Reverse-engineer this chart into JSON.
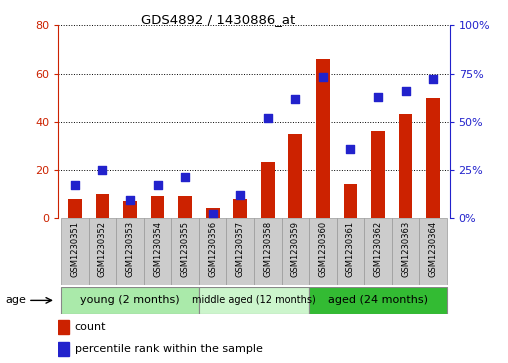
{
  "title": "GDS4892 / 1430886_at",
  "samples": [
    "GSM1230351",
    "GSM1230352",
    "GSM1230353",
    "GSM1230354",
    "GSM1230355",
    "GSM1230356",
    "GSM1230357",
    "GSM1230358",
    "GSM1230359",
    "GSM1230360",
    "GSM1230361",
    "GSM1230362",
    "GSM1230363",
    "GSM1230364"
  ],
  "counts": [
    8,
    10,
    7,
    9,
    9,
    4,
    8,
    23,
    35,
    66,
    14,
    36,
    43,
    50
  ],
  "percentiles": [
    17,
    25,
    9,
    17,
    21,
    2,
    12,
    52,
    62,
    73,
    36,
    63,
    66,
    72
  ],
  "groups": [
    {
      "label": "young (2 months)",
      "start": 0,
      "end": 4,
      "color": "#b8f0b8"
    },
    {
      "label": "middle aged (12 months)",
      "start": 5,
      "end": 8,
      "color": "#d0f5d0"
    },
    {
      "label": "aged (24 months)",
      "start": 9,
      "end": 13,
      "color": "#44cc44"
    }
  ],
  "ylim_left": [
    0,
    80
  ],
  "ylim_right": [
    0,
    100
  ],
  "yticks_left": [
    0,
    20,
    40,
    60,
    80
  ],
  "yticks_right": [
    0,
    25,
    50,
    75,
    100
  ],
  "ytick_labels_right": [
    "0%",
    "25%",
    "50%",
    "75%",
    "100%"
  ],
  "bar_color": "#cc2200",
  "dot_color": "#2222cc",
  "grid_color": "#000000",
  "tick_color_left": "#cc2200",
  "tick_color_right": "#2222cc",
  "bar_width": 0.5,
  "dot_size": 30,
  "cell_bg": "#cccccc",
  "cell_edge": "#999999",
  "group_young_color": "#aaeaaa",
  "group_middle_color": "#ccf5cc",
  "group_aged_color": "#33bb33",
  "legend_items": [
    {
      "label": "count",
      "color": "#cc2200"
    },
    {
      "label": "percentile rank within the sample",
      "color": "#2222cc"
    }
  ]
}
